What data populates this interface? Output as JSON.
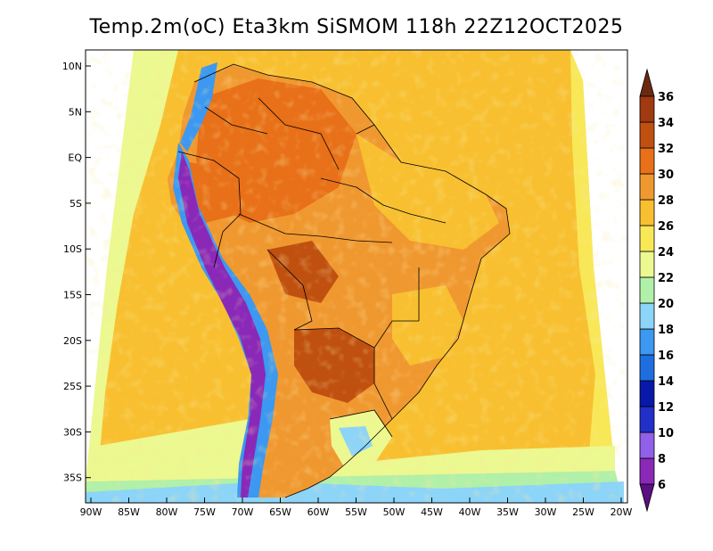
{
  "title": "Temp.2m(oC) Eta3km SiSMOM 118h 22Z12OCT2025",
  "latitude_labels": [
    "10N",
    "5N",
    "EQ",
    "5S",
    "10S",
    "15S",
    "20S",
    "25S",
    "30S",
    "35S"
  ],
  "longitude_labels": [
    "90W",
    "85W",
    "80W",
    "75W",
    "70W",
    "65W",
    "60W",
    "55W",
    "50W",
    "45W",
    "40W",
    "35W",
    "30W",
    "25W",
    "20W"
  ],
  "colorbar": {
    "unit": "oC",
    "levels": [
      "6",
      "8",
      "10",
      "12",
      "14",
      "16",
      "18",
      "20",
      "22",
      "24",
      "26",
      "28",
      "30",
      "32",
      "34",
      "36"
    ],
    "colors": [
      "#5a1080",
      "#8a28b8",
      "#9060e8",
      "#2030c8",
      "#0818a8",
      "#1e6ee0",
      "#3c98f0",
      "#8cd4f8",
      "#b0f0a8",
      "#ecf890",
      "#f8e858",
      "#f8c030",
      "#f09830",
      "#e87018",
      "#c05010",
      "#a03a10",
      "#6a2a10"
    ]
  }
}
